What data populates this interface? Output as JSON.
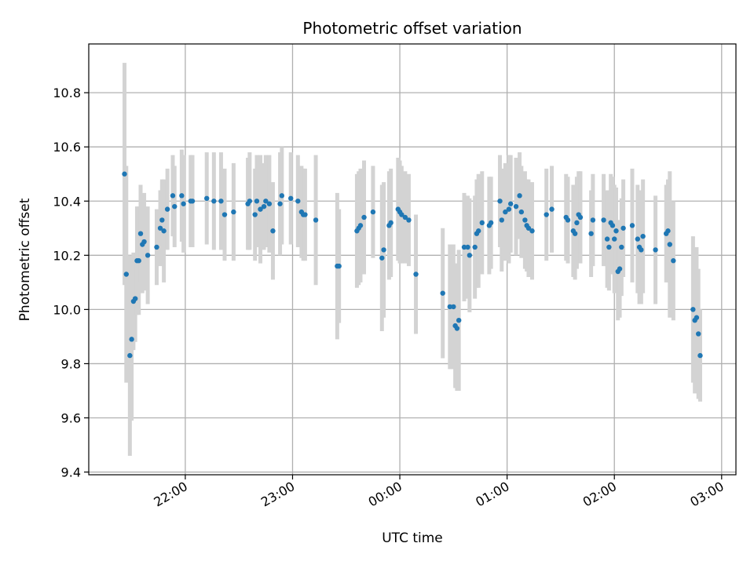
{
  "chart_data": {
    "type": "scatter",
    "title": "Photometric offset variation",
    "xlabel": "UTC time",
    "ylabel": "Photometric offset",
    "x_ticks": [
      "22:00",
      "23:00",
      "00:00",
      "01:00",
      "02:00",
      "03:00"
    ],
    "y_ticks": [
      "9.4",
      "9.6",
      "9.8",
      "10.0",
      "10.2",
      "10.4",
      "10.6",
      "10.8"
    ],
    "xlim": [
      "21:06",
      "03:08"
    ],
    "ylim": [
      9.39,
      10.98
    ],
    "grid": true,
    "colors": {
      "point": "#1f77b4",
      "errorbar": "#d3d3d3",
      "grid": "#b0b0b0"
    },
    "series": [
      {
        "points": [
          {
            "x": "21:26",
            "y": 10.5,
            "err": 0.41
          },
          {
            "x": "21:27",
            "y": 10.13,
            "err": 0.4
          },
          {
            "x": "21:29",
            "y": 9.83,
            "err": 0.37
          },
          {
            "x": "21:30",
            "y": 9.89,
            "err": 0.3
          },
          {
            "x": "21:31",
            "y": 10.03,
            "err": 0.18
          },
          {
            "x": "21:32",
            "y": 10.04,
            "err": 0.16
          },
          {
            "x": "21:33",
            "y": 10.18,
            "err": 0.2
          },
          {
            "x": "21:34",
            "y": 10.18,
            "err": 0.2
          },
          {
            "x": "21:35",
            "y": 10.28,
            "err": 0.18
          },
          {
            "x": "21:36",
            "y": 10.24,
            "err": 0.18
          },
          {
            "x": "21:37",
            "y": 10.25,
            "err": 0.18
          },
          {
            "x": "21:39",
            "y": 10.2,
            "err": 0.18
          },
          {
            "x": "21:44",
            "y": 10.23,
            "err": 0.14
          },
          {
            "x": "21:46",
            "y": 10.3,
            "err": 0.14
          },
          {
            "x": "21:47",
            "y": 10.33,
            "err": 0.15
          },
          {
            "x": "21:48",
            "y": 10.29,
            "err": 0.19
          },
          {
            "x": "21:50",
            "y": 10.37,
            "err": 0.15
          },
          {
            "x": "21:53",
            "y": 10.42,
            "err": 0.15
          },
          {
            "x": "21:54",
            "y": 10.38,
            "err": 0.15
          },
          {
            "x": "21:58",
            "y": 10.42,
            "err": 0.17
          },
          {
            "x": "21:59",
            "y": 10.39,
            "err": 0.18
          },
          {
            "x": "22:03",
            "y": 10.4,
            "err": 0.17
          },
          {
            "x": "22:04",
            "y": 10.4,
            "err": 0.17
          },
          {
            "x": "22:12",
            "y": 10.41,
            "err": 0.17
          },
          {
            "x": "22:16",
            "y": 10.4,
            "err": 0.18
          },
          {
            "x": "22:20",
            "y": 10.4,
            "err": 0.18
          },
          {
            "x": "22:22",
            "y": 10.35,
            "err": 0.17
          },
          {
            "x": "22:27",
            "y": 10.36,
            "err": 0.18
          },
          {
            "x": "22:35",
            "y": 10.39,
            "err": 0.17
          },
          {
            "x": "22:36",
            "y": 10.4,
            "err": 0.18
          },
          {
            "x": "22:39",
            "y": 10.35,
            "err": 0.17
          },
          {
            "x": "22:40",
            "y": 10.4,
            "err": 0.17
          },
          {
            "x": "22:42",
            "y": 10.37,
            "err": 0.2
          },
          {
            "x": "22:44",
            "y": 10.38,
            "err": 0.16
          },
          {
            "x": "22:45",
            "y": 10.4,
            "err": 0.17
          },
          {
            "x": "22:47",
            "y": 10.39,
            "err": 0.18
          },
          {
            "x": "22:49",
            "y": 10.29,
            "err": 0.18
          },
          {
            "x": "22:53",
            "y": 10.39,
            "err": 0.19
          },
          {
            "x": "22:54",
            "y": 10.42,
            "err": 0.18
          },
          {
            "x": "22:59",
            "y": 10.41,
            "err": 0.17
          },
          {
            "x": "23:03",
            "y": 10.4,
            "err": 0.17
          },
          {
            "x": "23:05",
            "y": 10.36,
            "err": 0.17
          },
          {
            "x": "23:06",
            "y": 10.35,
            "err": 0.17
          },
          {
            "x": "23:07",
            "y": 10.35,
            "err": 0.17
          },
          {
            "x": "23:13",
            "y": 10.33,
            "err": 0.24
          },
          {
            "x": "23:25",
            "y": 10.16,
            "err": 0.27
          },
          {
            "x": "23:26",
            "y": 10.16,
            "err": 0.21
          },
          {
            "x": "23:36",
            "y": 10.29,
            "err": 0.21
          },
          {
            "x": "23:37",
            "y": 10.3,
            "err": 0.21
          },
          {
            "x": "23:38",
            "y": 10.31,
            "err": 0.21
          },
          {
            "x": "23:40",
            "y": 10.34,
            "err": 0.21
          },
          {
            "x": "23:45",
            "y": 10.36,
            "err": 0.17
          },
          {
            "x": "23:50",
            "y": 10.19,
            "err": 0.27
          },
          {
            "x": "23:51",
            "y": 10.22,
            "err": 0.25
          },
          {
            "x": "23:54",
            "y": 10.31,
            "err": 0.2
          },
          {
            "x": "23:55",
            "y": 10.32,
            "err": 0.2
          },
          {
            "x": "23:59",
            "y": 10.37,
            "err": 0.19
          },
          {
            "x": "00:00",
            "y": 10.36,
            "err": 0.19
          },
          {
            "x": "00:01",
            "y": 10.35,
            "err": 0.18
          },
          {
            "x": "00:03",
            "y": 10.34,
            "err": 0.17
          },
          {
            "x": "00:05",
            "y": 10.33,
            "err": 0.17
          },
          {
            "x": "00:09",
            "y": 10.13,
            "err": 0.22
          },
          {
            "x": "00:24",
            "y": 10.06,
            "err": 0.24
          },
          {
            "x": "00:28",
            "y": 10.01,
            "err": 0.23
          },
          {
            "x": "00:30",
            "y": 10.01,
            "err": 0.23
          },
          {
            "x": "00:31",
            "y": 9.94,
            "err": 0.23
          },
          {
            "x": "00:32",
            "y": 9.93,
            "err": 0.23
          },
          {
            "x": "00:33",
            "y": 9.96,
            "err": 0.26
          },
          {
            "x": "00:36",
            "y": 10.23,
            "err": 0.2
          },
          {
            "x": "00:38",
            "y": 10.23,
            "err": 0.19
          },
          {
            "x": "00:39",
            "y": 10.2,
            "err": 0.21
          },
          {
            "x": "00:42",
            "y": 10.23,
            "err": 0.19
          },
          {
            "x": "00:43",
            "y": 10.28,
            "err": 0.2
          },
          {
            "x": "00:44",
            "y": 10.29,
            "err": 0.21
          },
          {
            "x": "00:46",
            "y": 10.32,
            "err": 0.19
          },
          {
            "x": "00:50",
            "y": 10.31,
            "err": 0.18
          },
          {
            "x": "00:51",
            "y": 10.32,
            "err": 0.17
          },
          {
            "x": "00:56",
            "y": 10.4,
            "err": 0.17
          },
          {
            "x": "00:57",
            "y": 10.33,
            "err": 0.19
          },
          {
            "x": "00:59",
            "y": 10.36,
            "err": 0.18
          },
          {
            "x": "01:01",
            "y": 10.37,
            "err": 0.2
          },
          {
            "x": "01:02",
            "y": 10.39,
            "err": 0.18
          },
          {
            "x": "01:05",
            "y": 10.38,
            "err": 0.18
          },
          {
            "x": "01:07",
            "y": 10.42,
            "err": 0.16
          },
          {
            "x": "01:08",
            "y": 10.36,
            "err": 0.17
          },
          {
            "x": "01:10",
            "y": 10.33,
            "err": 0.18
          },
          {
            "x": "01:11",
            "y": 10.31,
            "err": 0.17
          },
          {
            "x": "01:12",
            "y": 10.3,
            "err": 0.18
          },
          {
            "x": "01:14",
            "y": 10.29,
            "err": 0.18
          },
          {
            "x": "01:22",
            "y": 10.35,
            "err": 0.17
          },
          {
            "x": "01:25",
            "y": 10.37,
            "err": 0.16
          },
          {
            "x": "01:33",
            "y": 10.34,
            "err": 0.16
          },
          {
            "x": "01:34",
            "y": 10.33,
            "err": 0.16
          },
          {
            "x": "01:37",
            "y": 10.29,
            "err": 0.17
          },
          {
            "x": "01:38",
            "y": 10.28,
            "err": 0.17
          },
          {
            "x": "01:39",
            "y": 10.32,
            "err": 0.17
          },
          {
            "x": "01:40",
            "y": 10.35,
            "err": 0.16
          },
          {
            "x": "01:41",
            "y": 10.34,
            "err": 0.17
          },
          {
            "x": "01:47",
            "y": 10.28,
            "err": 0.16
          },
          {
            "x": "01:48",
            "y": 10.33,
            "err": 0.17
          },
          {
            "x": "01:54",
            "y": 10.33,
            "err": 0.17
          },
          {
            "x": "01:56",
            "y": 10.26,
            "err": 0.18
          },
          {
            "x": "01:57",
            "y": 10.23,
            "err": 0.16
          },
          {
            "x": "01:58",
            "y": 10.32,
            "err": 0.18
          },
          {
            "x": "01:59",
            "y": 10.31,
            "err": 0.18
          },
          {
            "x": "02:00",
            "y": 10.26,
            "err": 0.2
          },
          {
            "x": "02:01",
            "y": 10.29,
            "err": 0.16
          },
          {
            "x": "02:02",
            "y": 10.14,
            "err": 0.18
          },
          {
            "x": "02:03",
            "y": 10.15,
            "err": 0.18
          },
          {
            "x": "02:04",
            "y": 10.23,
            "err": 0.18
          },
          {
            "x": "02:05",
            "y": 10.3,
            "err": 0.18
          },
          {
            "x": "02:10",
            "y": 10.31,
            "err": 0.21
          },
          {
            "x": "02:13",
            "y": 10.26,
            "err": 0.2
          },
          {
            "x": "02:14",
            "y": 10.23,
            "err": 0.21
          },
          {
            "x": "02:15",
            "y": 10.22,
            "err": 0.2
          },
          {
            "x": "02:16",
            "y": 10.27,
            "err": 0.21
          },
          {
            "x": "02:23",
            "y": 10.22,
            "err": 0.2
          },
          {
            "x": "02:29",
            "y": 10.28,
            "err": 0.18
          },
          {
            "x": "02:30",
            "y": 10.29,
            "err": 0.19
          },
          {
            "x": "02:31",
            "y": 10.24,
            "err": 0.27
          },
          {
            "x": "02:33",
            "y": 10.18,
            "err": 0.22
          },
          {
            "x": "02:44",
            "y": 10.0,
            "err": 0.27
          },
          {
            "x": "02:45",
            "y": 9.96,
            "err": 0.27
          },
          {
            "x": "02:46",
            "y": 9.97,
            "err": 0.26
          },
          {
            "x": "02:47",
            "y": 9.91,
            "err": 0.24
          },
          {
            "x": "02:48",
            "y": 9.83,
            "err": 0.17
          }
        ]
      }
    ]
  }
}
